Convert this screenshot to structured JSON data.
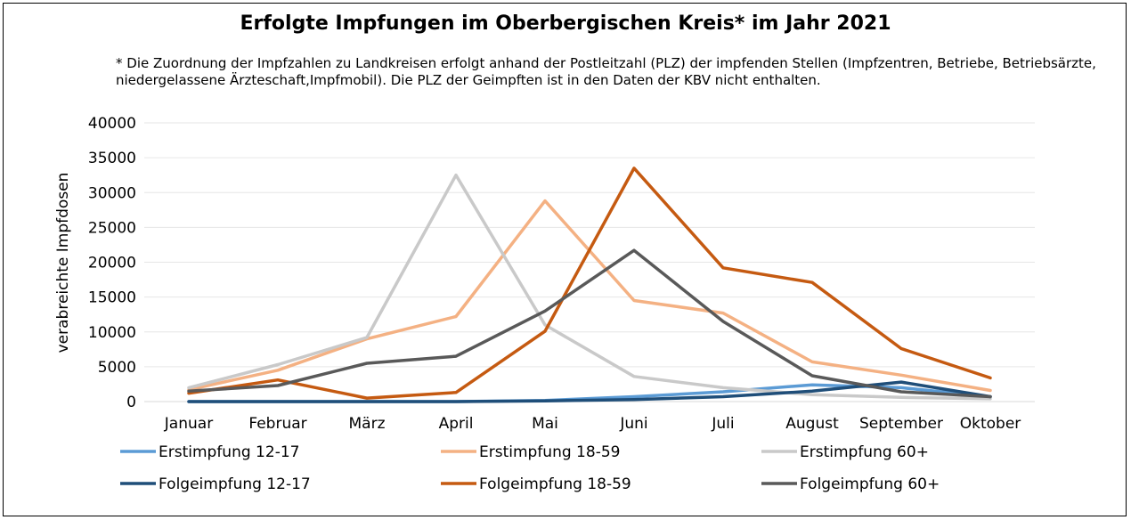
{
  "chart_data": {
    "type": "line",
    "title": "Erfolgte Impfungen im Oberbergischen Kreis* im Jahr 2021",
    "subtitle": "* Die Zuordnung der Impfzahlen zu Landkreisen erfolgt anhand der Postleitzahl (PLZ) der impfenden Stellen (Impfzentren, Betriebe, Betriebsärzte, niedergelassene Ärzteschaft,Impfmobil). Die PLZ der Geimpften ist in den Daten der KBV nicht enthalten.",
    "xlabel": "",
    "ylabel": "verabreichte Impfdosen",
    "ylim": [
      0,
      40000
    ],
    "yticks": [
      "0",
      "5000",
      "10000",
      "15000",
      "20000",
      "25000",
      "30000",
      "35000",
      "40000"
    ],
    "categories": [
      "Januar",
      "Februar",
      "März",
      "April",
      "Mai",
      "Juni",
      "Juli",
      "August",
      "September",
      "Oktober"
    ],
    "grid": true,
    "legend_position": "bottom",
    "series": [
      {
        "name": "Erstimpfung 12-17",
        "color": "#5b9bd5",
        "values": [
          0,
          0,
          0,
          0,
          150,
          700,
          1400,
          2400,
          2000,
          700
        ]
      },
      {
        "name": "Erstimpfung 18-59",
        "color": "#f4b183",
        "values": [
          1700,
          4500,
          9000,
          12200,
          28800,
          14500,
          12700,
          5700,
          3800,
          1600
        ]
      },
      {
        "name": "Erstimpfung 60+",
        "color": "#c9c9c9",
        "values": [
          2000,
          5300,
          9200,
          32500,
          11000,
          3600,
          2000,
          1000,
          600,
          400
        ]
      },
      {
        "name": "Folgeimpfung 12-17",
        "color": "#1f4e79",
        "values": [
          0,
          0,
          0,
          0,
          100,
          300,
          700,
          1500,
          2800,
          700
        ]
      },
      {
        "name": "Folgeimpfung 18-59",
        "color": "#c55a11",
        "values": [
          1200,
          3100,
          500,
          1300,
          10100,
          33500,
          19200,
          17100,
          7600,
          3400
        ]
      },
      {
        "name": "Folgeimpfung 60+",
        "color": "#595959",
        "values": [
          1500,
          2300,
          5500,
          6500,
          13000,
          21700,
          11500,
          3700,
          1400,
          700
        ]
      }
    ]
  }
}
